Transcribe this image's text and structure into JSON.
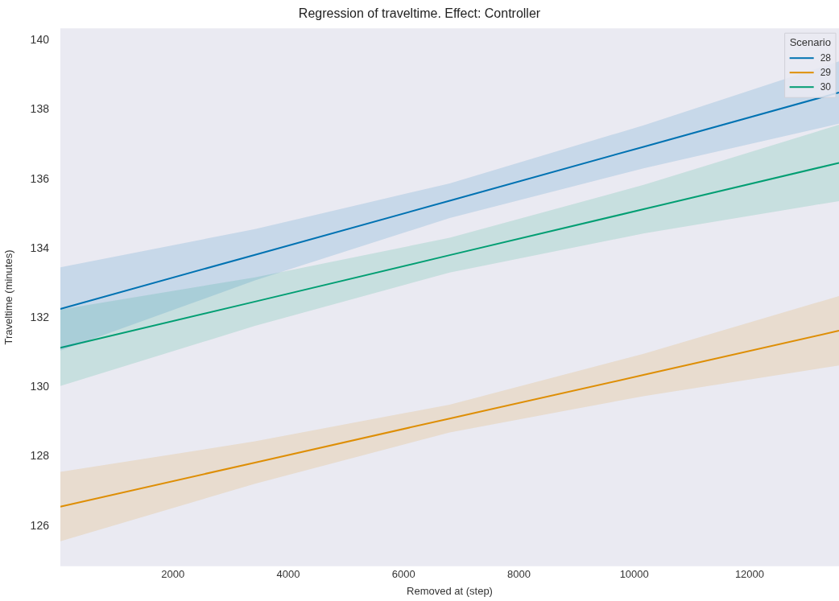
{
  "chart_data": {
    "type": "line",
    "title": "Regression of traveltime. Effect: Controller",
    "xlabel": "Removed at (step)",
    "ylabel": "Traveltime (minutes)",
    "legend_title": "Scenario",
    "x": [
      50,
      3425,
      6800,
      10175,
      13550
    ],
    "series": [
      {
        "name": "28",
        "color": "#0173b2",
        "values": [
          132.26,
          133.82,
          135.38,
          136.94,
          138.5
        ],
        "lower": [
          131.06,
          133.08,
          134.88,
          136.32,
          137.6
        ],
        "upper": [
          133.46,
          134.56,
          135.88,
          137.56,
          139.4
        ]
      },
      {
        "name": "29",
        "color": "#de8f05",
        "values": [
          126.56,
          127.83,
          129.1,
          130.36,
          131.63
        ],
        "lower": [
          125.56,
          127.22,
          128.7,
          129.75,
          130.63
        ],
        "upper": [
          127.56,
          128.44,
          129.5,
          130.97,
          132.63
        ]
      },
      {
        "name": "30",
        "color": "#029e73",
        "values": [
          131.14,
          132.47,
          133.81,
          135.14,
          136.47
        ],
        "lower": [
          130.04,
          131.77,
          133.31,
          134.44,
          135.37
        ],
        "upper": [
          132.24,
          133.17,
          134.31,
          135.84,
          137.57
        ]
      }
    ],
    "xlim": [
      50,
      13550
    ],
    "ylim": [
      124.84,
      140.35
    ],
    "xticks": [
      2000,
      4000,
      6000,
      8000,
      10000,
      12000
    ],
    "yticks": [
      126,
      128,
      130,
      132,
      134,
      136,
      138,
      140
    ],
    "grid": false,
    "legend": "top right",
    "marker": "none",
    "line_style": "solid"
  }
}
